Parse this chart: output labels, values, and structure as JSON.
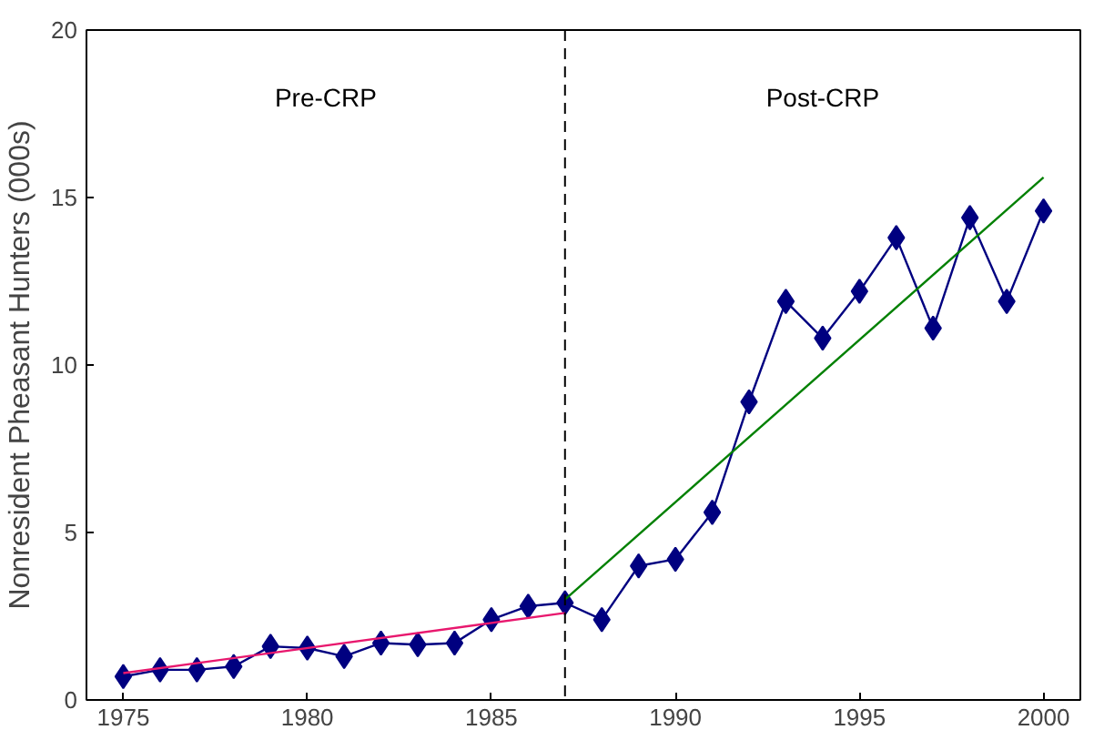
{
  "chart_data": {
    "type": "line",
    "ylabel": "Nonresident Pheasant Hunters (000s)",
    "xlim": [
      1974,
      2001
    ],
    "ylim": [
      0,
      20
    ],
    "xticks": [
      1975,
      1980,
      1985,
      1990,
      1995,
      2000
    ],
    "yticks": [
      0,
      5,
      10,
      15,
      20
    ],
    "grid": false,
    "marker": "diamond",
    "line_style": "solid",
    "series": [
      {
        "color": "#000080",
        "x": [
          1975,
          1976,
          1977,
          1978,
          1979,
          1980,
          1981,
          1982,
          1983,
          1984,
          1985,
          1986,
          1987,
          1988,
          1989,
          1990,
          1991,
          1992,
          1993,
          1994,
          1995,
          1996,
          1997,
          1998,
          1999,
          2000
        ],
        "values": [
          0.7,
          0.9,
          0.9,
          1.0,
          1.6,
          1.55,
          1.3,
          1.7,
          1.65,
          1.7,
          2.4,
          2.8,
          2.9,
          2.4,
          4.0,
          4.2,
          5.6,
          8.9,
          11.9,
          10.8,
          12.2,
          13.8,
          11.1,
          14.4,
          11.9,
          14.6
        ]
      },
      {
        "color": "#e8186e",
        "marker": "none",
        "x": [
          1975,
          1987
        ],
        "values": [
          0.8,
          2.6
        ]
      },
      {
        "color": "#008000",
        "marker": "none",
        "x": [
          1987,
          2000
        ],
        "values": [
          3.0,
          15.6
        ]
      }
    ],
    "ref_lines": [
      {
        "axis": "x",
        "value": 1987,
        "color": "#000000",
        "line_style": "dashed"
      }
    ],
    "annotations": [
      "Pre-CRP",
      "Post-CRP"
    ]
  }
}
